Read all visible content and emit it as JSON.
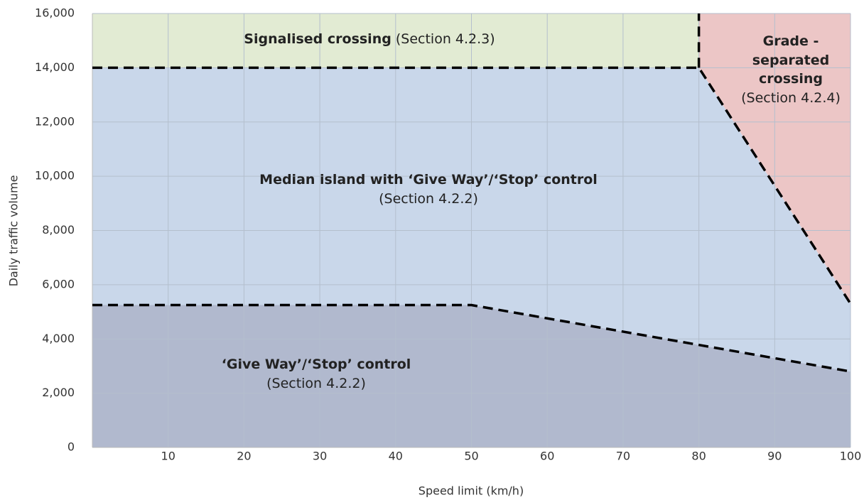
{
  "chart_data": {
    "type": "area",
    "x_label": "Speed limit (km/h)",
    "y_label": "Daily traffic volume",
    "xlim": [
      0,
      100
    ],
    "xticks": [
      10,
      20,
      30,
      40,
      50,
      60,
      70,
      80,
      90,
      100
    ],
    "ylim": [
      0,
      16000
    ],
    "yticks": [
      {
        "value": 0,
        "label": "0"
      },
      {
        "value": 2000,
        "label": "2,000"
      },
      {
        "value": 4000,
        "label": "4,000"
      },
      {
        "value": 6000,
        "label": "6,000"
      },
      {
        "value": 8000,
        "label": "8,000"
      },
      {
        "value": 10000,
        "label": "10,000"
      },
      {
        "value": 12000,
        "label": "12,000"
      },
      {
        "value": 14000,
        "label": "14,000"
      },
      {
        "value": 16000,
        "label": "16,000"
      }
    ],
    "grid": true,
    "boundaries": [
      {
        "x": [
          0,
          50,
          100
        ],
        "values": [
          5250,
          5250,
          2800
        ]
      },
      {
        "x": [
          0,
          80,
          100
        ],
        "values": [
          14000,
          14000,
          5300
        ]
      },
      {
        "x": [
          80,
          80
        ],
        "values": [
          14000,
          16000
        ]
      }
    ],
    "regions": [
      {
        "name": "‘Give Way’/‘Stop’ control",
        "note": "(Section 4.2.2)",
        "color": "#b1b9ce"
      },
      {
        "name": "Median island with ‘Give Way’/‘Stop’ control",
        "note": "(Section 4.2.2)",
        "color": "#c9d7ea"
      },
      {
        "name": "Signalised crossing",
        "note": "(Section 4.2.3)",
        "color": "#e2ebd3"
      },
      {
        "name": "Grade - separated crossing",
        "note": "(Section 4.2.4)",
        "color": "#ecc6c6"
      }
    ]
  }
}
